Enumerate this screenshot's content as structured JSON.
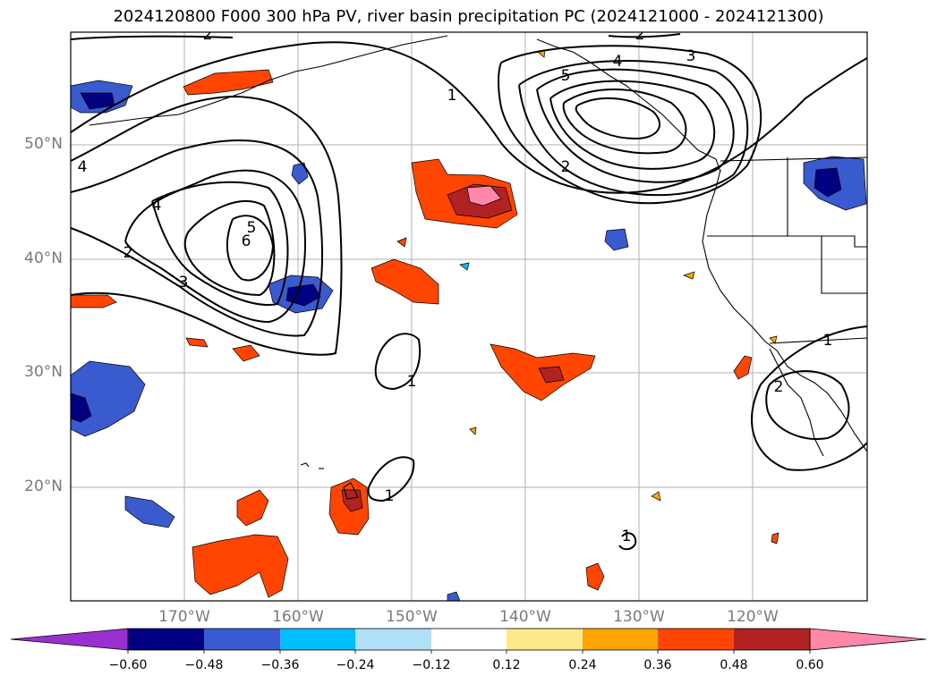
{
  "title": "2024120800 F000 300 hPa PV, river basin precipitation PC (2024121000 - 2024121300)",
  "lat_labels": [
    "50°N",
    "40°N",
    "30°N",
    "20°N"
  ],
  "lon_labels": [
    "170°W",
    "160°W",
    "150°W",
    "140°W",
    "130°W",
    "120°W"
  ],
  "colorbar": {
    "colors": [
      "#9b30d0",
      "#000080",
      "#3a5bd0",
      "#00bfff",
      "#b0e0f8",
      "#ffffff",
      "#fde98c",
      "#ffa500",
      "#ff4500",
      "#b22222",
      "#ff88aa"
    ],
    "ticks": [
      "−0.60",
      "−0.48",
      "−0.36",
      "−0.24",
      "−0.12",
      "0.12",
      "0.24",
      "0.36",
      "0.48",
      "0.60"
    ]
  },
  "contour_labels": [
    "2",
    "2",
    "1",
    "3",
    "5",
    "4",
    "4",
    "2",
    "5",
    "6",
    "4",
    "2",
    "3",
    "1",
    "1",
    "1",
    "2",
    "1"
  ]
}
